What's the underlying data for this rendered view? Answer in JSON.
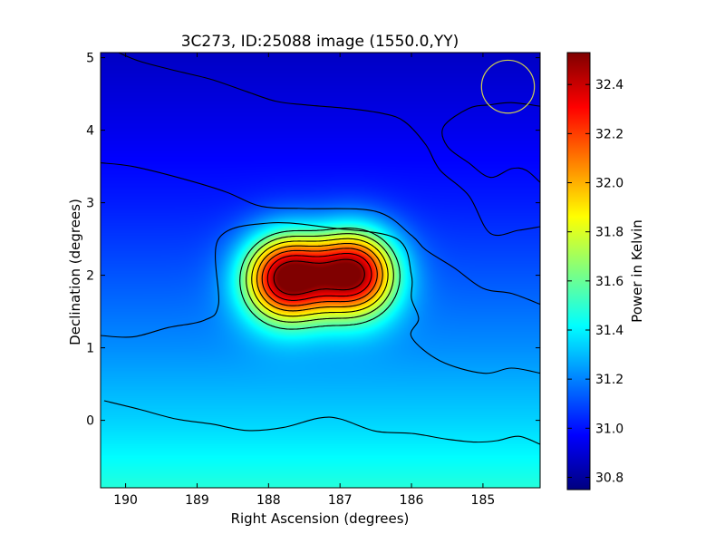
{
  "chart_data": {
    "type": "heatmap",
    "title": "3C273, ID:25088 image (1550.0,YY)",
    "xlabel": "Right Ascension (degrees)",
    "ylabel": "Declination (degrees)",
    "colorbar_label": "Power in Kelvin",
    "colormap": "jet",
    "x_axis_reversed": true,
    "xlim": [
      190.35,
      184.2
    ],
    "ylim": [
      -0.93,
      5.07
    ],
    "x_ticks": [
      190,
      189,
      188,
      187,
      186,
      185
    ],
    "y_ticks": [
      0,
      1,
      2,
      3,
      4,
      5
    ],
    "colorbar_range": [
      30.75,
      32.53
    ],
    "colorbar_ticks": [
      30.8,
      31.0,
      31.2,
      31.4,
      31.6,
      31.8,
      32.0,
      32.2,
      32.4
    ],
    "field_model": {
      "background_gradient": [
        {
          "dec": -0.93,
          "power": 31.48
        },
        {
          "dec": 0.0,
          "power": 31.34
        },
        {
          "dec": 1.0,
          "power": 31.22
        },
        {
          "dec": 2.0,
          "power": 31.12
        },
        {
          "dec": 3.0,
          "power": 31.02
        },
        {
          "dec": 4.0,
          "power": 30.94
        },
        {
          "dec": 5.07,
          "power": 30.87
        }
      ],
      "sources": [
        {
          "ra": 187.75,
          "dec": 1.97,
          "peak_power": 32.53
        },
        {
          "ra": 186.8,
          "dec": 2.03,
          "peak_power": 32.48
        }
      ]
    },
    "contours": [
      {
        "closed": false,
        "points": [
          [
            190.3,
            0.27
          ],
          [
            189.8,
            0.15
          ],
          [
            189.3,
            0.02
          ],
          [
            188.8,
            -0.05
          ],
          [
            188.3,
            -0.14
          ],
          [
            187.8,
            -0.1
          ],
          [
            187.3,
            0.03
          ],
          [
            187.0,
            0.02
          ],
          [
            186.5,
            -0.15
          ],
          [
            186.0,
            -0.18
          ],
          [
            185.5,
            -0.26
          ],
          [
            185.1,
            -0.3
          ],
          [
            184.8,
            -0.28
          ],
          [
            184.5,
            -0.22
          ],
          [
            184.2,
            -0.33
          ]
        ]
      },
      {
        "closed": false,
        "points": [
          [
            190.35,
            1.17
          ],
          [
            189.9,
            1.15
          ],
          [
            189.4,
            1.28
          ],
          [
            188.9,
            1.38
          ],
          [
            188.7,
            1.6
          ],
          [
            188.7,
            2.5
          ],
          [
            188.0,
            2.72
          ],
          [
            187.1,
            2.65
          ],
          [
            186.2,
            2.5
          ],
          [
            186.0,
            2.0
          ],
          [
            186.0,
            1.68
          ],
          [
            185.9,
            1.4
          ],
          [
            186.0,
            1.15
          ],
          [
            185.6,
            0.82
          ],
          [
            185.0,
            0.65
          ],
          [
            184.6,
            0.72
          ],
          [
            184.2,
            0.65
          ]
        ]
      },
      {
        "closed": false,
        "points": [
          [
            190.35,
            3.55
          ],
          [
            189.9,
            3.5
          ],
          [
            189.2,
            3.33
          ],
          [
            188.6,
            3.15
          ],
          [
            188.1,
            2.95
          ],
          [
            187.5,
            2.92
          ],
          [
            186.5,
            2.88
          ],
          [
            186.0,
            2.55
          ],
          [
            185.8,
            2.35
          ],
          [
            185.4,
            2.1
          ],
          [
            185.0,
            1.82
          ],
          [
            184.6,
            1.75
          ],
          [
            184.2,
            1.6
          ]
        ]
      },
      {
        "closed": false,
        "points": [
          [
            190.1,
            5.07
          ],
          [
            189.8,
            4.95
          ],
          [
            189.3,
            4.82
          ],
          [
            188.8,
            4.7
          ],
          [
            188.3,
            4.53
          ],
          [
            187.9,
            4.4
          ],
          [
            187.5,
            4.35
          ],
          [
            186.9,
            4.3
          ],
          [
            186.4,
            4.23
          ],
          [
            186.1,
            4.12
          ],
          [
            185.8,
            3.8
          ],
          [
            185.6,
            3.45
          ],
          [
            185.2,
            3.1
          ],
          [
            184.9,
            2.58
          ],
          [
            184.5,
            2.62
          ],
          [
            184.2,
            2.67
          ]
        ]
      },
      {
        "closed": false,
        "points": [
          [
            184.2,
            4.33
          ],
          [
            184.6,
            4.38
          ],
          [
            184.9,
            4.35
          ],
          [
            185.2,
            4.3
          ],
          [
            185.55,
            4.05
          ],
          [
            185.5,
            3.78
          ],
          [
            185.2,
            3.55
          ],
          [
            184.9,
            3.35
          ],
          [
            184.6,
            3.47
          ],
          [
            184.4,
            3.45
          ],
          [
            184.2,
            3.28
          ]
        ]
      }
    ],
    "beam_marker": {
      "ra": 184.65,
      "dec": 4.6,
      "radius_deg": 0.37,
      "color": "#d0d050"
    }
  }
}
